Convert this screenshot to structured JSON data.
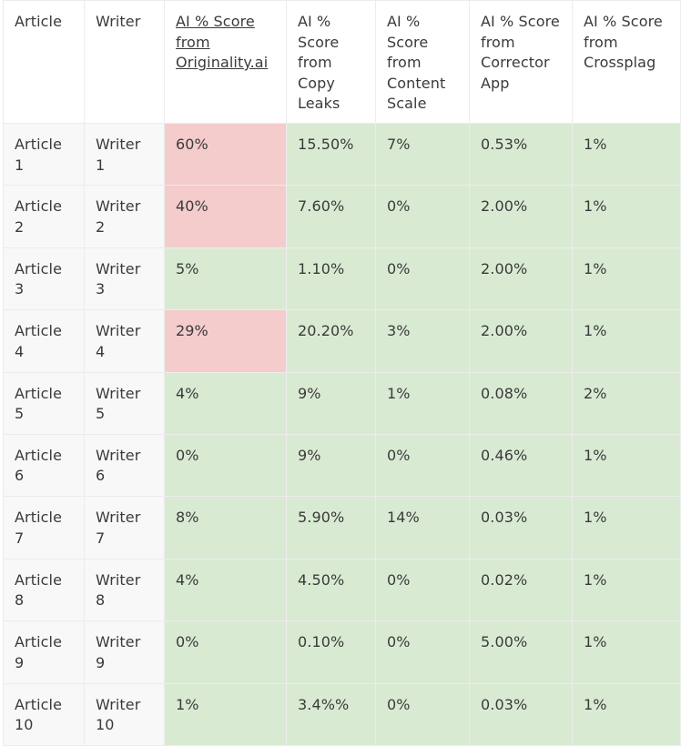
{
  "headers": [
    "Article",
    "Writer",
    "AI % Score from Originality.ai",
    "AI % Score from Copy Leaks",
    "AI % Score from Content Scale",
    "AI % Score from Corrector App",
    "AI % Score from Crossplag"
  ],
  "rows": [
    [
      "Article 1",
      "Writer 1",
      "60%",
      "15.50%",
      "7%",
      "0.53%",
      "1%"
    ],
    [
      "Article 2",
      "Writer 2",
      "40%",
      "7.60%",
      "0%",
      "2.00%",
      "1%"
    ],
    [
      "Article 3",
      "Writer 3",
      "5%",
      "1.10%",
      "0%",
      "2.00%",
      "1%"
    ],
    [
      "Article 4",
      "Writer 4",
      "29%",
      "20.20%",
      "3%",
      "2.00%",
      "1%"
    ],
    [
      "Article 5",
      "Writer 5",
      "4%",
      "9%",
      "1%",
      "0.08%",
      "2%"
    ],
    [
      "Article 6",
      "Writer 6",
      "0%",
      "9%",
      "0%",
      "0.46%",
      "1%"
    ],
    [
      "Article 7",
      "Writer 7",
      "8%",
      "5.90%",
      "14%",
      "0.03%",
      "1%"
    ],
    [
      "Article 8",
      "Writer 8",
      "4%",
      "4.50%",
      "0%",
      "0.02%",
      "1%"
    ],
    [
      "Article 9",
      "Writer 9",
      "0%",
      "0.10%",
      "0%",
      "5.00%",
      "1%"
    ],
    [
      "Article 10",
      "Writer 10",
      "1%",
      "3.4%%",
      "0%",
      "0.03%",
      "1%"
    ]
  ],
  "highlight_colors": {
    "green": "#d9ead3",
    "red": "#f4cccc"
  }
}
